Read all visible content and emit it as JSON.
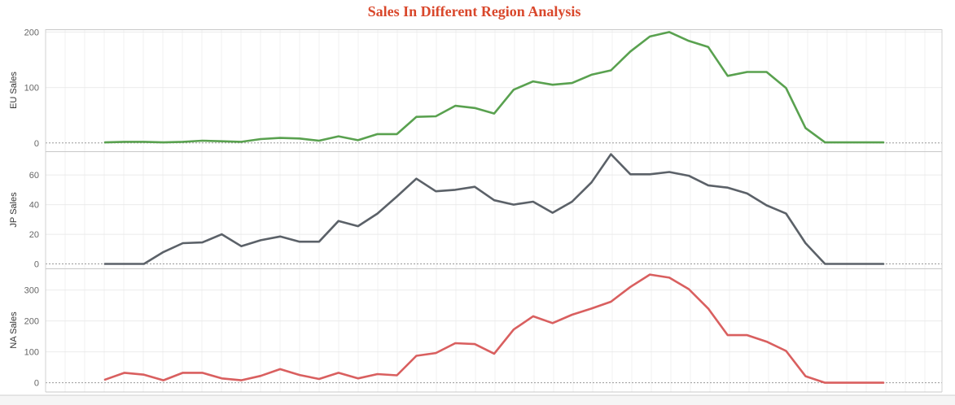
{
  "chart_data": {
    "type": "line",
    "title": "Sales In Different Region Analysis",
    "title_color": "#d9472b",
    "grid": true,
    "panels": [
      {
        "name": "EU Sales",
        "ylabel": "EU Sales",
        "color": "#59a14f",
        "ylim": [
          -15,
          205
        ],
        "yticks": [
          0,
          100,
          200
        ],
        "values": [
          1,
          2,
          2,
          1,
          2,
          4,
          3,
          2,
          7,
          9,
          8,
          4,
          12,
          5,
          16,
          16,
          47,
          48,
          67,
          63,
          53,
          96,
          111,
          105,
          108,
          123,
          131,
          165,
          192,
          200,
          184,
          173,
          121,
          128,
          128,
          99,
          27,
          1,
          1,
          1,
          1
        ]
      },
      {
        "name": "JP Sales",
        "ylabel": "JP Sales",
        "color": "#5b6168",
        "ylim": [
          -3,
          76
        ],
        "yticks": [
          0,
          20,
          40,
          60
        ],
        "values": [
          0,
          0,
          0,
          8,
          14,
          14.5,
          20,
          12,
          16,
          18.5,
          15,
          15,
          29,
          25.5,
          34,
          45.5,
          57.5,
          49,
          50,
          52,
          43,
          40,
          42,
          34.5,
          42,
          55,
          74,
          60.5,
          60.5,
          62,
          59.5,
          53,
          51.5,
          47.5,
          39.5,
          34,
          14,
          0,
          0,
          0,
          0
        ]
      },
      {
        "name": "NA Sales",
        "ylabel": "NA Sales",
        "color": "#d95f5f",
        "ylim": [
          -30,
          370
        ],
        "yticks": [
          0,
          100,
          200,
          300
        ],
        "values": [
          10,
          32,
          26,
          8,
          32,
          32,
          14,
          8,
          22,
          44,
          25,
          12,
          32,
          14,
          28,
          24,
          87,
          96,
          128,
          125,
          94,
          172,
          215,
          193,
          220,
          240,
          262,
          310,
          350,
          340,
          303,
          240,
          154,
          154,
          133,
          103,
          21,
          0,
          0,
          0,
          0
        ]
      }
    ]
  }
}
